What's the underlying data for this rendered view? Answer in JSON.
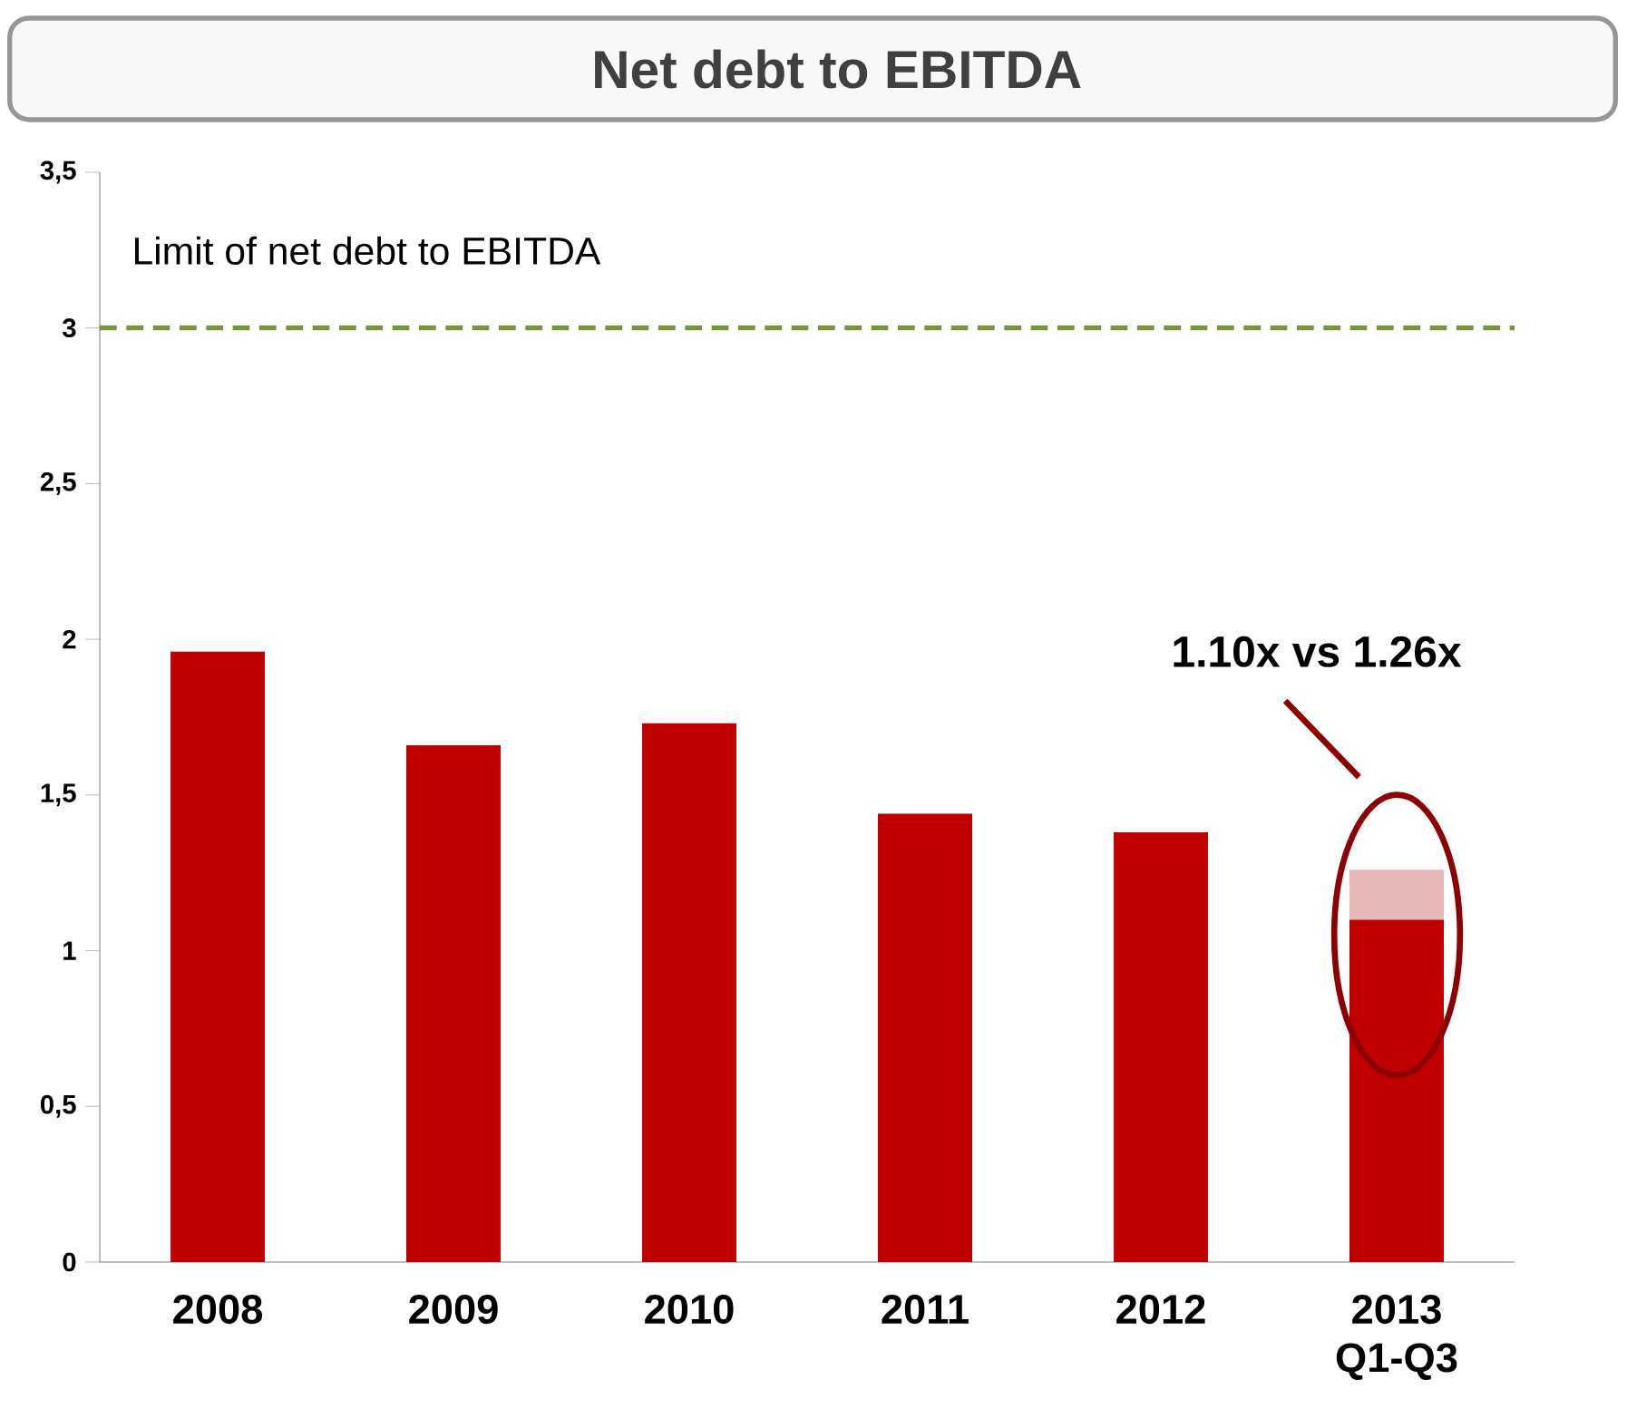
{
  "chart_data": {
    "type": "bar",
    "title": "Net debt to EBITDA",
    "categories": [
      "2008",
      "2009",
      "2010",
      "2011",
      "2012",
      "2013 Q1-Q3"
    ],
    "stacked": true,
    "series": [
      {
        "color": "#c00000",
        "values": [
          1.96,
          1.66,
          1.73,
          1.44,
          1.38,
          1.1
        ]
      },
      {
        "color": "#e6b9b8",
        "values": [
          null,
          null,
          null,
          null,
          null,
          0.16
        ]
      }
    ],
    "ylim": [
      0,
      3.5
    ],
    "yticks": [
      0,
      {
        "value": 0.5,
        "label": "0,5"
      },
      1,
      {
        "value": 1.5,
        "label": "1,5"
      },
      2,
      {
        "value": 2.5,
        "label": "2,5"
      },
      3,
      {
        "value": 3.5,
        "label": "3,5"
      }
    ],
    "ref_lines": [
      {
        "axis": "y",
        "value": 3,
        "label": "Limit of net debt to EBITDA",
        "color": "#77933c",
        "line_style": "dashed"
      }
    ],
    "annotations": [
      "1.10x vs 1.26x"
    ],
    "grid": false
  }
}
